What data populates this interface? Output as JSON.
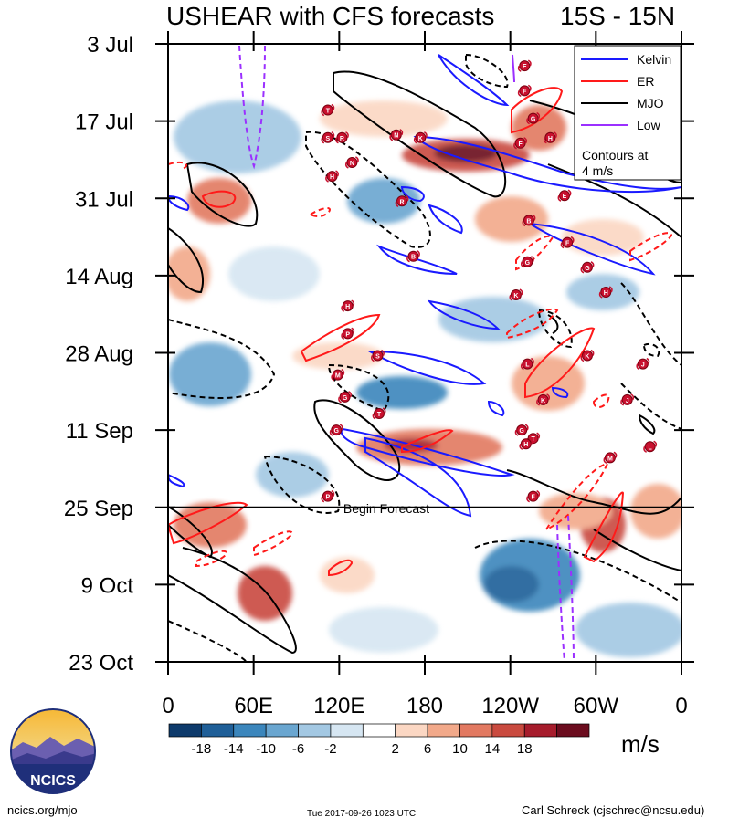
{
  "title_left": "USHEAR with CFS forecasts",
  "title_right": "15S - 15N",
  "footer": {
    "left": "ncics.org/mjo",
    "center": "Tue 2017-09-26 1023 UTC",
    "right": "Carl Schreck (cjschrec@ncsu.edu)"
  },
  "logo_text": "NCICS",
  "chart_data": {
    "type": "heatmap",
    "title": "USHEAR with CFS forecasts",
    "subtitle": "15S - 15N",
    "x_ticks": [
      "0",
      "60E",
      "120E",
      "180",
      "120W",
      "60W",
      "0"
    ],
    "x_tick_deg": [
      0,
      60,
      120,
      180,
      240,
      300,
      360
    ],
    "y_ticks": [
      "3 Jul",
      "17 Jul",
      "31 Jul",
      "14 Aug",
      "28 Aug",
      "11 Sep",
      "25 Sep",
      "9 Oct",
      "23 Oct"
    ],
    "y_tick_day": [
      0,
      14,
      28,
      42,
      56,
      70,
      84,
      98,
      112
    ],
    "colorbar": {
      "labels": [
        "-18",
        "-14",
        "-10",
        "-6",
        "-2",
        "2",
        "6",
        "10",
        "14",
        "18"
      ],
      "colors": [
        "#0d3a6b",
        "#1f5f98",
        "#3b86bc",
        "#6aa6d0",
        "#a3c8e3",
        "#d6e6f2",
        "#ffffff",
        "#fbd7c3",
        "#f2a98a",
        "#e27961",
        "#c94a3f",
        "#a61c2c",
        "#6b0c1e"
      ],
      "units": "m/s"
    },
    "legend": {
      "placement": "top-right",
      "entries": [
        {
          "name": "Kelvin",
          "color": "#1a1aff"
        },
        {
          "name": "ER",
          "color": "#ff1a1a"
        },
        {
          "name": "MJO",
          "color": "#000000"
        },
        {
          "name": "Low",
          "color": "#9b30ff"
        }
      ],
      "note_line1": "Contours at",
      "note_line2": "4 m/s"
    },
    "forecast_line": {
      "day": 84,
      "label": "Begin Forecast"
    },
    "storm_labels": [
      {
        "text": "E",
        "lon": 250,
        "day": 4
      },
      {
        "text": "F",
        "lon": 250,
        "day": 8.5
      },
      {
        "text": "G",
        "lon": 256,
        "day": 13.5
      },
      {
        "text": "T",
        "lon": 112,
        "day": 12
      },
      {
        "text": "S",
        "lon": 112,
        "day": 17
      },
      {
        "text": "R",
        "lon": 122,
        "day": 17
      },
      {
        "text": "N",
        "lon": 160,
        "day": 16.5
      },
      {
        "text": "K",
        "lon": 177,
        "day": 17
      },
      {
        "text": "H",
        "lon": 268,
        "day": 17
      },
      {
        "text": "F",
        "lon": 247,
        "day": 18
      },
      {
        "text": "N",
        "lon": 129,
        "day": 21.5
      },
      {
        "text": "H",
        "lon": 115,
        "day": 24
      },
      {
        "text": "E",
        "lon": 278,
        "day": 27.5
      },
      {
        "text": "R",
        "lon": 164,
        "day": 28.5
      },
      {
        "text": "B",
        "lon": 253,
        "day": 32
      },
      {
        "text": "F",
        "lon": 280,
        "day": 36
      },
      {
        "text": "B",
        "lon": 172,
        "day": 38.5
      },
      {
        "text": "G",
        "lon": 252,
        "day": 39.5
      },
      {
        "text": "G",
        "lon": 294,
        "day": 40.5
      },
      {
        "text": "K",
        "lon": 244,
        "day": 45.5
      },
      {
        "text": "H",
        "lon": 307,
        "day": 45
      },
      {
        "text": "H",
        "lon": 126,
        "day": 47.5
      },
      {
        "text": "P",
        "lon": 126,
        "day": 52.5
      },
      {
        "text": "K",
        "lon": 294,
        "day": 56.5
      },
      {
        "text": "S",
        "lon": 147,
        "day": 56.5
      },
      {
        "text": "L",
        "lon": 252,
        "day": 58
      },
      {
        "text": "M",
        "lon": 119,
        "day": 60
      },
      {
        "text": "J",
        "lon": 333,
        "day": 58
      },
      {
        "text": "G",
        "lon": 124,
        "day": 64
      },
      {
        "text": "K",
        "lon": 263,
        "day": 64.5
      },
      {
        "text": "J",
        "lon": 322,
        "day": 64.5
      },
      {
        "text": "T",
        "lon": 148,
        "day": 67
      },
      {
        "text": "G",
        "lon": 118,
        "day": 70
      },
      {
        "text": "G",
        "lon": 248,
        "day": 70
      },
      {
        "text": "T",
        "lon": 256,
        "day": 71.5
      },
      {
        "text": "H",
        "lon": 251,
        "day": 72.5
      },
      {
        "text": "L",
        "lon": 338,
        "day": 73
      },
      {
        "text": "M",
        "lon": 310,
        "day": 75
      },
      {
        "text": "P",
        "lon": 112,
        "day": 82
      },
      {
        "text": "F",
        "lon": 256,
        "day": 82
      }
    ]
  }
}
